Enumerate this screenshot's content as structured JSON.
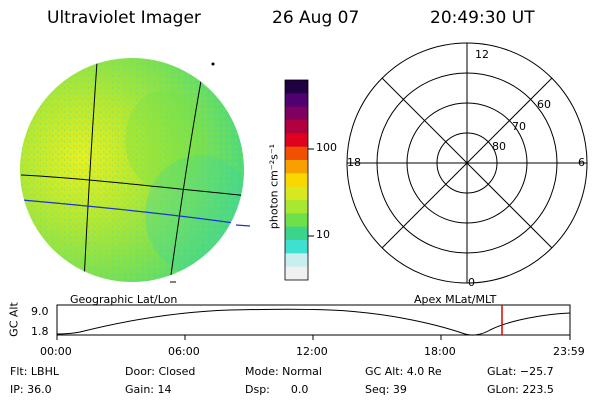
{
  "header": {
    "title": "Ultraviolet Imager",
    "date": "26 Aug 07",
    "time": "20:49:30 UT"
  },
  "colorbar": {
    "unit_label": "photon cm⁻²s⁻¹",
    "ticks": [
      "100",
      "10"
    ],
    "scale": "log",
    "colors": [
      "#f0f0f0",
      "#c8eef0",
      "#40e0d0",
      "#3ad48a",
      "#6ee04a",
      "#a8e830",
      "#d8e820",
      "#f8d800",
      "#f8a000",
      "#f05000",
      "#e00020",
      "#b00040",
      "#800060",
      "#500070",
      "#200040"
    ]
  },
  "left_panel": {
    "label": "Geographic Lat/Lon"
  },
  "right_panel": {
    "label": "Apex MLat/MLT",
    "mlt_labels": {
      "top": "12",
      "bottom": "0",
      "left": "18",
      "right": "6"
    },
    "mlat_labels": [
      "60",
      "70",
      "80"
    ]
  },
  "altitude_plot": {
    "ylabel": "GC Alt",
    "yticks": [
      "9.0",
      "1.8"
    ],
    "xticks": [
      "00:00",
      "06:00",
      "12:00",
      "18:00",
      "23:59"
    ],
    "marker_color": "#dd0000"
  },
  "info": {
    "flt": "Flt: LBHL",
    "ip": "IP: 36.0",
    "door": "Door: Closed",
    "gain": "Gain: 14",
    "mode": "Mode: Normal",
    "dsp": "Dsp:      0.0",
    "gcalt": "GC Alt: 4.0 Re",
    "seq": "Seq: 39",
    "glat": "GLat: −25.7",
    "glon": "GLon: 223.5"
  }
}
